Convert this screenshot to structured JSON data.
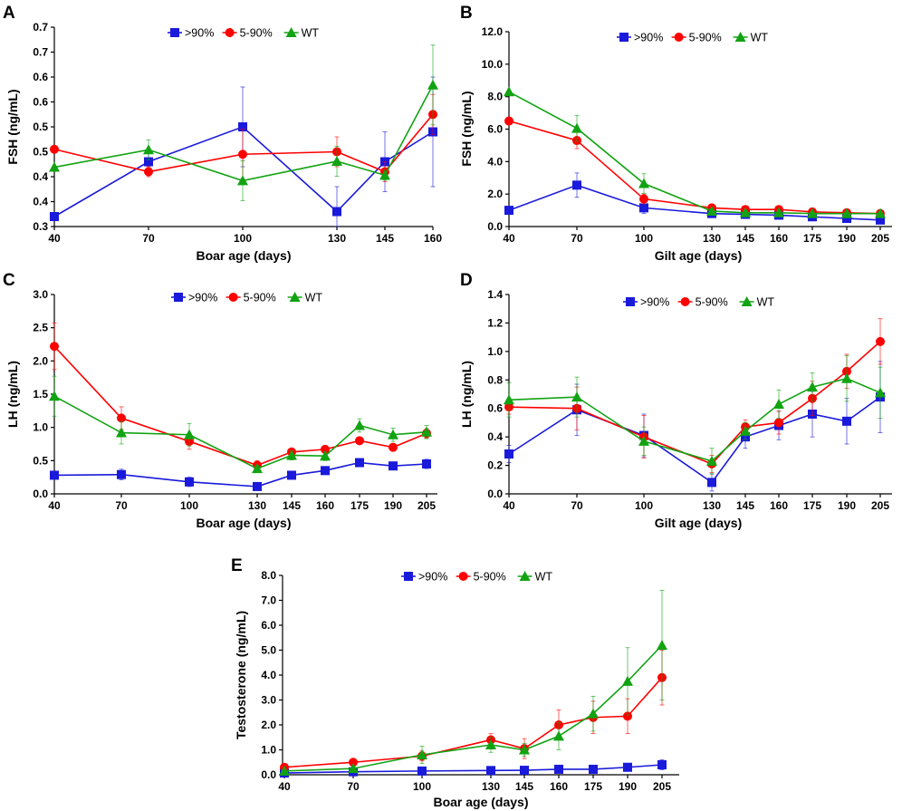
{
  "colors": {
    "gt90": "#1a1adb",
    "p5_90": "#ff0000",
    "wt": "#12a312"
  },
  "markers": {
    "gt90": "square",
    "p5_90": "circle",
    "wt": "triangle"
  },
  "chart_data": [
    {
      "type": "line",
      "panel": "A",
      "ylabel": "FSH (ng/mL)",
      "xlabel": "Boar age (days)",
      "x": [
        40,
        70,
        100,
        130,
        145,
        160
      ],
      "xticks": [
        "40",
        "70",
        "100",
        "130",
        "145",
        "160"
      ],
      "ylim": [
        0.3,
        0.7
      ],
      "yticks": [
        "0.3",
        "0.4",
        "0.4",
        "0.5",
        "0.5",
        "0.6",
        "0.6",
        "0.7",
        "0.7"
      ],
      "legend": ">90%|5-90%|WT",
      "series": [
        {
          "name": ">90%",
          "key": "gt90",
          "values": [
            0.32,
            0.43,
            0.5,
            0.33,
            0.43,
            0.49
          ],
          "errors": [
            0,
            0.02,
            0.08,
            0.05,
            0.06,
            0.11
          ]
        },
        {
          "name": "5-90%",
          "key": "p5_90",
          "values": [
            0.455,
            0.41,
            0.445,
            0.45,
            0.41,
            0.525
          ],
          "errors": [
            0,
            0.01,
            0.05,
            0.03,
            0.02,
            0.04
          ]
        },
        {
          "name": "WT",
          "key": "wt",
          "values": [
            0.419,
            0.454,
            0.392,
            0.431,
            0.403,
            0.584
          ],
          "errors": [
            0,
            0.02,
            0.04,
            0.03,
            0.01,
            0.08
          ]
        }
      ]
    },
    {
      "type": "line",
      "panel": "B",
      "ylabel": "FSH (ng/mL)",
      "xlabel": "Gilt age (days)",
      "x": [
        40,
        70,
        100,
        130,
        145,
        160,
        175,
        190,
        205
      ],
      "xticks": [
        "40",
        "70",
        "100",
        "130",
        "145",
        "160",
        "175",
        "190",
        "205"
      ],
      "ylim": [
        0,
        12
      ],
      "yticks": [
        "0.0",
        "2.0",
        "4.0",
        "6.0",
        "8.0",
        "10.0",
        "12.0"
      ],
      "legend": ">90%|5-90%|WT",
      "series": [
        {
          "name": ">90%",
          "key": "gt90",
          "values": [
            1.0,
            2.55,
            1.15,
            0.8,
            0.75,
            0.7,
            0.6,
            0.5,
            0.4
          ],
          "errors": [
            0,
            0.75,
            0.35,
            0.1,
            0.1,
            0.1,
            0.1,
            0.1,
            0.1
          ]
        },
        {
          "name": "5-90%",
          "key": "p5_90",
          "values": [
            6.5,
            5.3,
            1.7,
            1.15,
            1.05,
            1.05,
            0.9,
            0.85,
            0.8
          ],
          "errors": [
            0,
            0.5,
            0.3,
            0.15,
            0.15,
            0.15,
            0.1,
            0.1,
            0.1
          ]
        },
        {
          "name": "WT",
          "key": "wt",
          "values": [
            8.3,
            6.05,
            2.65,
            0.95,
            0.85,
            0.85,
            0.8,
            0.8,
            0.8
          ],
          "errors": [
            0,
            0.8,
            0.6,
            0.15,
            0.15,
            0.15,
            0.1,
            0.1,
            0.1
          ]
        }
      ]
    },
    {
      "type": "line",
      "panel": "C",
      "ylabel": "LH (ng/mL)",
      "xlabel": "Boar age (days)",
      "x": [
        40,
        70,
        100,
        130,
        145,
        160,
        175,
        190,
        205
      ],
      "xticks": [
        "40",
        "70",
        "100",
        "130",
        "145",
        "160",
        "175",
        "190",
        "205"
      ],
      "ylim": [
        0,
        3
      ],
      "yticks": [
        "0.0",
        "0.5",
        "1.0",
        "1.5",
        "2.0",
        "2.5",
        "3.0"
      ],
      "legend": ">90%|5-90%|WT",
      "series": [
        {
          "name": ">90%",
          "key": "gt90",
          "values": [
            0.28,
            0.29,
            0.18,
            0.11,
            0.28,
            0.35,
            0.47,
            0.42,
            0.45
          ],
          "errors": [
            0,
            0.08,
            0.07,
            0.05,
            0.05,
            0.05,
            0.05,
            0.05,
            0.07
          ]
        },
        {
          "name": "5-90%",
          "key": "p5_90",
          "values": [
            2.22,
            1.14,
            0.79,
            0.43,
            0.63,
            0.67,
            0.8,
            0.7,
            0.91
          ],
          "errors": [
            0.35,
            0.17,
            0.12,
            0.07,
            0.05,
            0.05,
            0.05,
            0.05,
            0.07
          ]
        },
        {
          "name": "WT",
          "key": "wt",
          "values": [
            1.47,
            0.92,
            0.89,
            0.38,
            0.58,
            0.57,
            1.03,
            0.89,
            0.93
          ],
          "errors": [
            0.3,
            0.17,
            0.17,
            0.05,
            0.07,
            0.07,
            0.1,
            0.1,
            0.1
          ]
        }
      ]
    },
    {
      "type": "line",
      "panel": "D",
      "ylabel": "LH (ng/mL)",
      "xlabel": "Gilt age (days)",
      "x": [
        40,
        70,
        100,
        130,
        145,
        160,
        175,
        190,
        205
      ],
      "xticks": [
        "40",
        "70",
        "100",
        "130",
        "145",
        "160",
        "175",
        "190",
        "205"
      ],
      "ylim": [
        0,
        1.4
      ],
      "yticks": [
        "0.0",
        "0.2",
        "0.4",
        "0.6",
        "0.8",
        "1.0",
        "1.2",
        "1.4"
      ],
      "legend": ">90%|5-90%|WT",
      "series": [
        {
          "name": ">90%",
          "key": "gt90",
          "values": [
            0.28,
            0.59,
            0.41,
            0.08,
            0.4,
            0.48,
            0.56,
            0.51,
            0.68
          ],
          "errors": [
            0.06,
            0.18,
            0.15,
            0.06,
            0.08,
            0.1,
            0.16,
            0.16,
            0.25
          ]
        },
        {
          "name": "5-90%",
          "key": "p5_90",
          "values": [
            0.61,
            0.6,
            0.4,
            0.21,
            0.47,
            0.5,
            0.67,
            0.86,
            1.07
          ],
          "errors": [
            0.05,
            0.15,
            0.15,
            0.06,
            0.05,
            0.08,
            0.12,
            0.12,
            0.16
          ]
        },
        {
          "name": "WT",
          "key": "wt",
          "values": [
            0.66,
            0.68,
            0.37,
            0.23,
            0.44,
            0.63,
            0.75,
            0.81,
            0.71
          ],
          "errors": [
            0.12,
            0.14,
            0.1,
            0.09,
            0.06,
            0.1,
            0.1,
            0.16,
            0.18
          ]
        }
      ]
    },
    {
      "type": "line",
      "panel": "E",
      "ylabel": "Testosterone (ng/mL)",
      "xlabel": "Boar age (days)",
      "x": [
        40,
        70,
        100,
        130,
        145,
        160,
        175,
        190,
        205
      ],
      "xticks": [
        "40",
        "70",
        "100",
        "130",
        "145",
        "160",
        "175",
        "190",
        "205"
      ],
      "ylim": [
        0,
        8
      ],
      "yticks": [
        "0.0",
        "1.0",
        "2.0",
        "3.0",
        "4.0",
        "5.0",
        "6.0",
        "7.0",
        "8.0"
      ],
      "legend": ">90%|5-90%|WT",
      "series": [
        {
          "name": ">90%",
          "key": "gt90",
          "values": [
            0.07,
            0.12,
            0.15,
            0.17,
            0.18,
            0.22,
            0.22,
            0.3,
            0.4
          ],
          "errors": [
            0.02,
            0.02,
            0.03,
            0.03,
            0.03,
            0.04,
            0.05,
            0.1,
            0.2
          ]
        },
        {
          "name": "5-90%",
          "key": "p5_90",
          "values": [
            0.3,
            0.5,
            0.75,
            1.4,
            1.05,
            2.0,
            2.3,
            2.35,
            3.9
          ],
          "errors": [
            0.05,
            0.1,
            0.2,
            0.25,
            0.4,
            0.6,
            0.65,
            0.7,
            1.1
          ]
        },
        {
          "name": "WT",
          "key": "wt",
          "values": [
            0.15,
            0.25,
            0.8,
            1.2,
            1.0,
            1.55,
            2.45,
            3.75,
            5.2
          ],
          "errors": [
            0.05,
            0.1,
            0.35,
            0.3,
            0.25,
            0.55,
            0.7,
            1.35,
            2.2
          ]
        }
      ]
    }
  ]
}
